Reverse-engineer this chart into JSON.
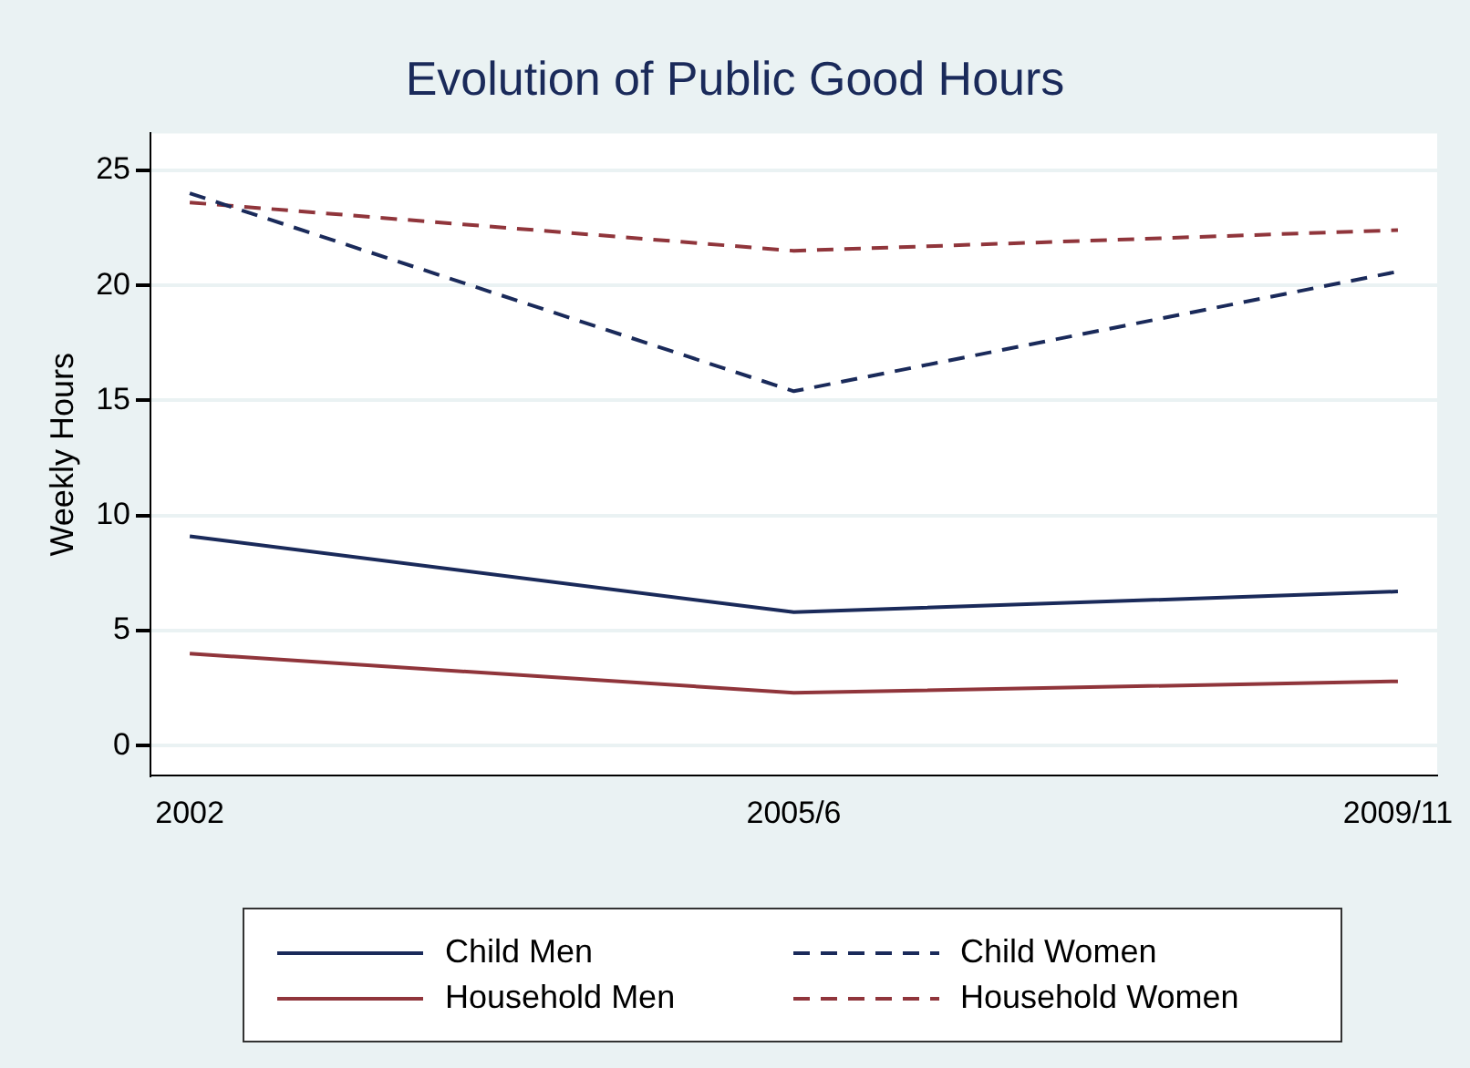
{
  "chart_data": {
    "type": "line",
    "title": "Evolution of Public Good Hours",
    "ylabel": "Weekly Hours",
    "categories": [
      "2002",
      "2005/6",
      "2009/11"
    ],
    "series": [
      {
        "name": "Child Men",
        "color": "#1a2a5a",
        "line_style": "solid",
        "values": [
          9.1,
          5.8,
          6.7
        ]
      },
      {
        "name": "Child Women",
        "color": "#1a2a5a",
        "line_style": "dashed",
        "values": [
          24.0,
          15.4,
          20.6
        ]
      },
      {
        "name": "Household Men",
        "color": "#90353b",
        "line_style": "solid",
        "values": [
          4.0,
          2.3,
          2.8
        ]
      },
      {
        "name": "Household Women",
        "color": "#90353b",
        "line_style": "dashed",
        "values": [
          23.6,
          21.5,
          22.4
        ]
      }
    ],
    "ylim": [
      -1.3,
      26.6
    ],
    "yticks": [
      0,
      5,
      10,
      15,
      20,
      25
    ],
    "grid": "y",
    "legend": "bottom",
    "marker": "none"
  }
}
